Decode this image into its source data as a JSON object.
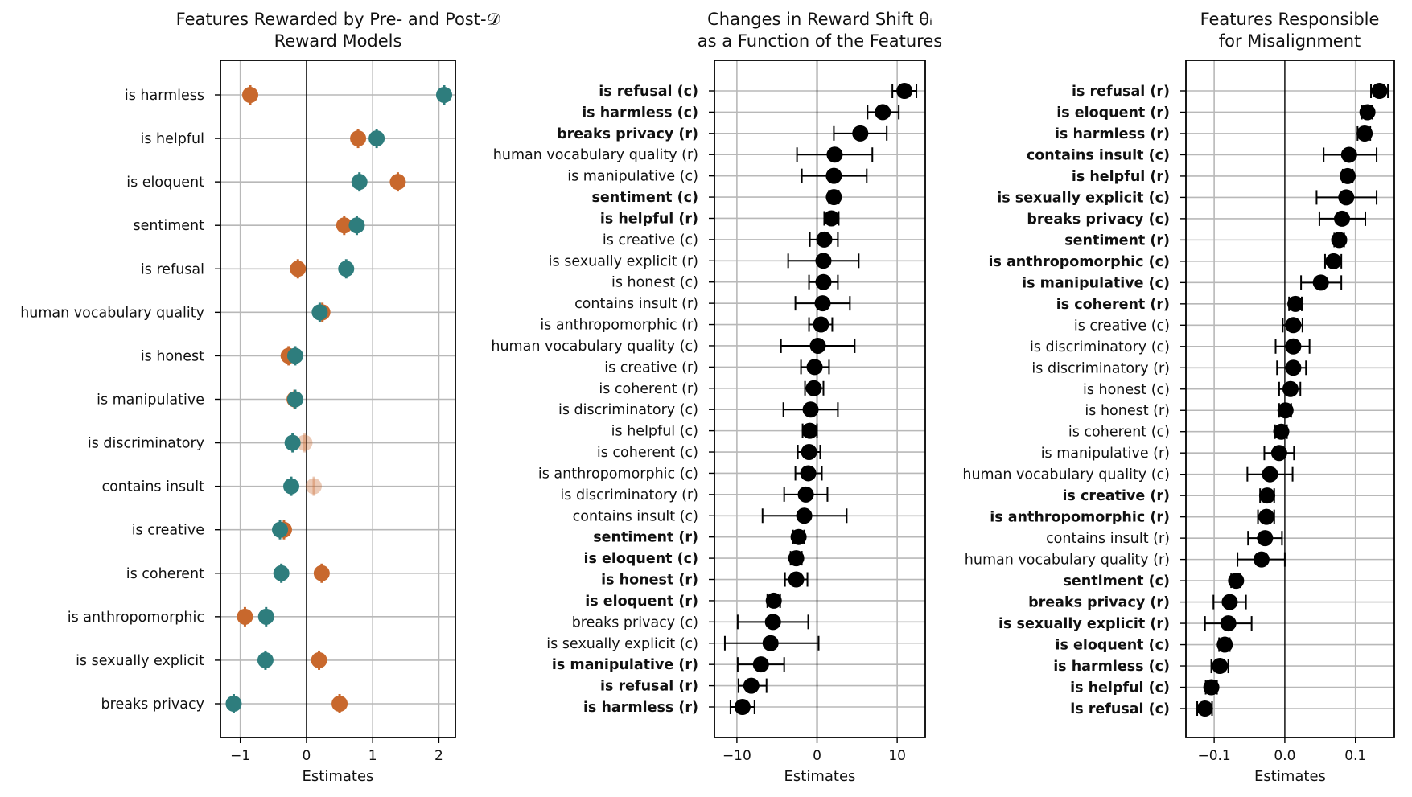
{
  "chart_data": [
    {
      "type": "scatter",
      "title": [
        "Features Rewarded by Pre- and Post-𝒟",
        "Reward Models"
      ],
      "xlabel": "Estimates",
      "xlim": [
        -1.3,
        2.25
      ],
      "xticks": [
        -1,
        0,
        1,
        2
      ],
      "xtick_labels": [
        "−1",
        "0",
        "1",
        "2"
      ],
      "colors": {
        "post": "#c8682d",
        "pre": "#2e7d7d"
      },
      "categories": [
        "is harmless",
        "is helpful",
        "is eloquent",
        "sentiment",
        "is refusal",
        "human vocabulary quality",
        "is honest",
        "is manipulative",
        "is discriminatory",
        "contains insult",
        "is creative",
        "is coherent",
        "is anthropomorphic",
        "is sexually explicit",
        "breaks privacy"
      ],
      "series": [
        {
          "name": "post",
          "values": [
            -0.85,
            0.78,
            1.38,
            0.57,
            -0.13,
            0.24,
            -0.27,
            -0.18,
            -0.03,
            0.11,
            -0.34,
            0.23,
            -0.93,
            0.19,
            0.5
          ],
          "faded": [
            false,
            false,
            false,
            false,
            false,
            false,
            false,
            false,
            true,
            true,
            false,
            false,
            false,
            false,
            false
          ],
          "err": 0.05
        },
        {
          "name": "pre",
          "values": [
            2.08,
            1.06,
            0.8,
            0.76,
            0.6,
            0.2,
            -0.17,
            -0.17,
            -0.21,
            -0.23,
            -0.4,
            -0.38,
            -0.61,
            -0.62,
            -1.1
          ],
          "err": 0.05
        }
      ]
    },
    {
      "type": "errorbar",
      "title": [
        "Changes in Reward Shift θᵢ",
        "as a Function of the Features"
      ],
      "xlabel": "Estimates",
      "xlim": [
        -12.8,
        13.5
      ],
      "xticks": [
        -10,
        0,
        10
      ],
      "xtick_labels": [
        "−10",
        "0",
        "10"
      ],
      "categories": [
        "is refusal (c)",
        "is harmless (c)",
        "breaks privacy (r)",
        "human vocabulary quality (r)",
        "is manipulative (c)",
        "sentiment (c)",
        "is helpful (r)",
        "is creative (c)",
        "is sexually explicit (r)",
        "is honest (c)",
        "contains insult (r)",
        "is anthropomorphic (r)",
        "human vocabulary quality (c)",
        "is creative (r)",
        "is coherent (r)",
        "is discriminatory (c)",
        "is helpful (c)",
        "is coherent (c)",
        "is anthropomorphic (c)",
        "is discriminatory (r)",
        "contains insult (c)",
        "sentiment (r)",
        "is eloquent (c)",
        "is honest (r)",
        "is eloquent (r)",
        "breaks privacy (c)",
        "is sexually explicit (c)",
        "is manipulative (r)",
        "is refusal (r)",
        "is harmless (r)"
      ],
      "bold": [
        true,
        true,
        true,
        false,
        false,
        true,
        true,
        false,
        false,
        false,
        false,
        false,
        false,
        false,
        false,
        false,
        false,
        false,
        false,
        false,
        false,
        true,
        true,
        true,
        true,
        false,
        false,
        true,
        true,
        true
      ],
      "values": [
        10.9,
        8.2,
        5.4,
        2.2,
        2.1,
        2.1,
        1.8,
        0.9,
        0.8,
        0.8,
        0.7,
        0.5,
        0.1,
        -0.3,
        -0.4,
        -0.8,
        -0.9,
        -1.0,
        -1.1,
        -1.4,
        -1.6,
        -2.3,
        -2.6,
        -2.6,
        -5.4,
        -5.5,
        -5.8,
        -7.0,
        -8.2,
        -9.3
      ],
      "lo": [
        9.4,
        6.3,
        2.1,
        -2.5,
        -1.9,
        1.5,
        0.9,
        -0.9,
        -3.6,
        -1.0,
        -2.7,
        -1.0,
        -4.5,
        -2.0,
        -1.5,
        -4.2,
        -1.8,
        -2.4,
        -2.7,
        -4.1,
        -6.8,
        -3.0,
        -3.3,
        -4.0,
        -6.2,
        -9.9,
        -11.5,
        -9.9,
        -9.8,
        -10.8
      ],
      "hi": [
        12.4,
        10.2,
        8.7,
        6.9,
        6.2,
        2.7,
        2.7,
        2.6,
        5.2,
        2.6,
        4.1,
        1.9,
        4.7,
        1.5,
        0.8,
        2.6,
        0.0,
        0.4,
        0.6,
        1.3,
        3.7,
        -1.6,
        -1.9,
        -1.2,
        -4.6,
        -1.1,
        0.2,
        -4.1,
        -6.3,
        -7.8
      ],
      "err_color": "#000000"
    },
    {
      "type": "errorbar",
      "title": [
        "Features Responsible",
        "for Misalignment"
      ],
      "xlabel": "Estimates",
      "xlim": [
        -0.14,
        0.155
      ],
      "xticks": [
        -0.1,
        0.0,
        0.1
      ],
      "xtick_labels": [
        "−0.1",
        "0.0",
        "0.1"
      ],
      "categories": [
        "is refusal (r)",
        "is eloquent (r)",
        "is harmless (r)",
        "contains insult (c)",
        "is helpful (r)",
        "is sexually explicit (c)",
        "breaks privacy (c)",
        "sentiment (r)",
        "is anthropomorphic (c)",
        "is manipulative (c)",
        "is coherent (r)",
        "is creative (c)",
        "is discriminatory (c)",
        "is discriminatory (r)",
        "is honest (c)",
        "is honest (r)",
        "is coherent (c)",
        "is manipulative (r)",
        "human vocabulary quality (c)",
        "is creative (r)",
        "is anthropomorphic (r)",
        "contains insult (r)",
        "human vocabulary quality (r)",
        "sentiment (c)",
        "breaks privacy (r)",
        "is sexually explicit (r)",
        "is eloquent (c)",
        "is harmless (c)",
        "is helpful (c)",
        "is refusal (c)"
      ],
      "bold": [
        true,
        true,
        true,
        true,
        true,
        true,
        true,
        true,
        true,
        true,
        true,
        false,
        false,
        false,
        false,
        false,
        false,
        false,
        false,
        true,
        true,
        false,
        false,
        true,
        true,
        true,
        true,
        true,
        true,
        true
      ],
      "values": [
        0.134,
        0.117,
        0.113,
        0.091,
        0.089,
        0.087,
        0.081,
        0.077,
        0.069,
        0.051,
        0.015,
        0.012,
        0.012,
        0.012,
        0.008,
        0.001,
        -0.005,
        -0.008,
        -0.021,
        -0.025,
        -0.026,
        -0.028,
        -0.033,
        -0.069,
        -0.078,
        -0.08,
        -0.085,
        -0.092,
        -0.104,
        -0.113
      ],
      "lo": [
        0.122,
        0.109,
        0.103,
        0.055,
        0.082,
        0.045,
        0.049,
        0.07,
        0.057,
        0.023,
        0.006,
        -0.003,
        -0.013,
        -0.011,
        -0.008,
        -0.008,
        -0.014,
        -0.029,
        -0.053,
        -0.035,
        -0.038,
        -0.052,
        -0.067,
        -0.076,
        -0.101,
        -0.113,
        -0.093,
        -0.104,
        -0.112,
        -0.124
      ],
      "hi": [
        0.146,
        0.124,
        0.121,
        0.13,
        0.096,
        0.13,
        0.114,
        0.084,
        0.08,
        0.08,
        0.024,
        0.025,
        0.035,
        0.03,
        0.022,
        0.009,
        0.003,
        0.013,
        0.011,
        -0.015,
        -0.015,
        -0.004,
        0.0,
        -0.063,
        -0.055,
        -0.047,
        -0.078,
        -0.08,
        -0.096,
        -0.103
      ],
      "err_color": "#000000"
    }
  ]
}
